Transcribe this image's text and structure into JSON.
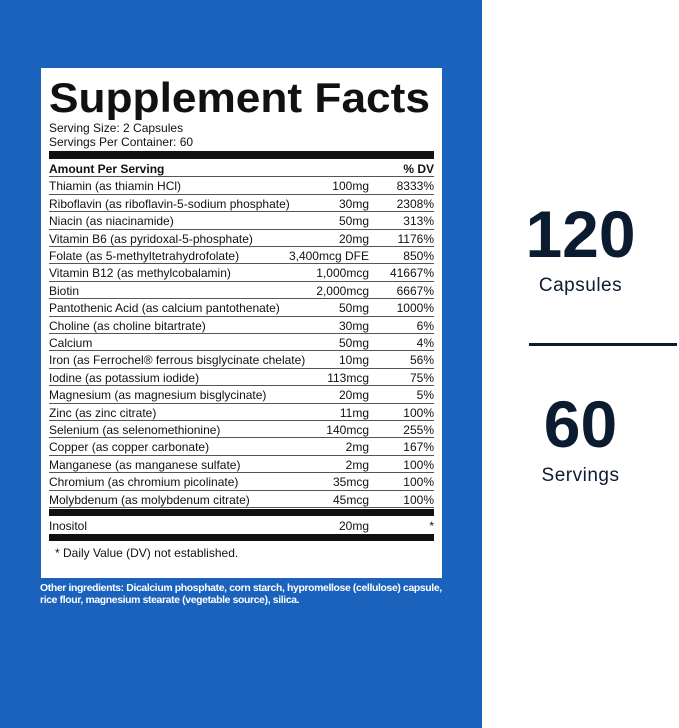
{
  "label": {
    "title": "Supplement Facts",
    "serving_size": "Serving Size: 2 Capsules",
    "servings_per_container": "Servings Per Container: 60",
    "header": [
      "Amount Per Serving",
      "% DV"
    ],
    "rows": [
      [
        "Thiamin (as thiamin HCl)",
        "100mg",
        "8333%"
      ],
      [
        "Riboflavin (as riboflavin-5-sodium phosphate)",
        "30mg",
        "2308%"
      ],
      [
        "Niacin (as niacinamide)",
        "50mg",
        "313%"
      ],
      [
        "Vitamin B6 (as pyridoxal-5-phosphate)",
        "20mg",
        "1176%"
      ],
      [
        "Folate (as 5-methyltetrahydrofolate)",
        "3,400mcg DFE",
        "850%"
      ],
      [
        "Vitamin B12 (as methylcobalamin)",
        "1,000mcg",
        "41667%"
      ],
      [
        "Biotin",
        "2,000mcg",
        "6667%"
      ],
      [
        "Pantothenic Acid (as calcium pantothenate)",
        "50mg",
        "1000%"
      ],
      [
        "Choline (as choline bitartrate)",
        "30mg",
        "6%"
      ],
      [
        "Calcium",
        "50mg",
        "4%"
      ],
      [
        "Iron (as Ferrochel® ferrous bisglycinate chelate)",
        "10mg",
        "56%"
      ],
      [
        "Iodine (as potassium iodide)",
        "113mcg",
        "75%"
      ],
      [
        "Magnesium (as magnesium bisglycinate)",
        "20mg",
        "5%"
      ],
      [
        "Zinc (as zinc citrate)",
        "11mg",
        "100%"
      ],
      [
        "Selenium (as selenomethionine)",
        "140mcg",
        "255%"
      ],
      [
        "Copper (as copper carbonate)",
        "2mg",
        "167%"
      ],
      [
        "Manganese (as manganese sulfate)",
        "2mg",
        "100%"
      ],
      [
        "Chromium (as chromium picolinate)",
        "35mcg",
        "100%"
      ],
      [
        "Molybdenum (as molybdenum citrate)",
        "45mcg",
        "100%"
      ]
    ],
    "extra_row": [
      "Inositol",
      "20mg",
      "*"
    ],
    "footnote": "* Daily Value (DV) not established.",
    "other_ingredients": "Other ingredients: Dicalcium phosphate, corn starch, hypromellose (cellulose) capsule, rice flour, magnesium stearate (vegetable source), silica."
  },
  "stats": [
    {
      "number": "120",
      "unit": "Capsules"
    },
    {
      "number": "60",
      "unit": "Servings"
    }
  ]
}
